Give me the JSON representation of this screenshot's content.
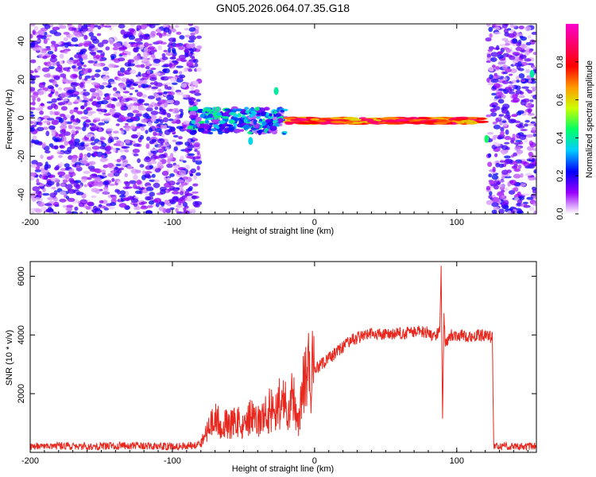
{
  "figure": {
    "title": "GN05.2026.064.07.35.G18"
  },
  "chart_data": [
    {
      "type": "heatmap",
      "title": "",
      "xlabel": "Height of straight line (km)",
      "ylabel": "Frequency (Hz)",
      "xlim": [
        -200,
        156
      ],
      "ylim": [
        -50,
        49
      ],
      "xticks": [
        -200,
        -100,
        0,
        100
      ],
      "yticks": [
        -40,
        -20,
        0,
        20,
        40
      ],
      "colorbar": {
        "label": "Normalized spectral amplitude",
        "range": [
          0,
          1
        ],
        "ticks": [
          "0.0",
          "0.2",
          "0.4",
          "0.6",
          "0.8"
        ],
        "colors": [
          "#ffffff",
          "#9900ff",
          "#0000ff",
          "#00ccff",
          "#00ff66",
          "#ccff00",
          "#ff9900",
          "#ff0000",
          "#ff0066",
          "#ff00cc"
        ]
      },
      "regions": [
        {
          "name": "noise-low",
          "x": [
            -200,
            -81
          ],
          "freq": [
            -50,
            49
          ],
          "amplitude": 0.15
        },
        {
          "name": "scattered-signal",
          "x": [
            -88,
            -20
          ],
          "freq": [
            -8,
            5
          ],
          "amplitude": 0.4
        },
        {
          "name": "signal-line",
          "x": [
            -20,
            118
          ],
          "freq": [
            -3,
            0
          ],
          "amplitude": 0.9
        },
        {
          "name": "noise-high",
          "x": [
            122,
            156
          ],
          "freq": [
            -50,
            49
          ],
          "amplitude": 0.15
        }
      ],
      "features": [
        {
          "x": -27,
          "freq": 14,
          "amplitude": 0.4
        },
        {
          "x": -45,
          "freq": -12,
          "amplitude": 0.35
        },
        {
          "x": 121,
          "freq": -11,
          "amplitude": 0.45
        },
        {
          "x": 153,
          "freq": 23,
          "amplitude": 0.4
        }
      ]
    },
    {
      "type": "line",
      "title": "",
      "xlabel": "Height of straight line (km)",
      "ylabel": "SNR (10 * v/v)",
      "xlim": [
        -200,
        156
      ],
      "ylim": [
        0,
        6500
      ],
      "xticks": [
        -200,
        -100,
        0,
        100
      ],
      "yticks": [
        2000,
        4000,
        6000
      ],
      "line_color": "#e8281e",
      "series": [
        {
          "x": [
            -200,
            -180,
            -160,
            -140,
            -120,
            -100,
            -90,
            -80,
            -75,
            -70,
            -65,
            -60,
            -55,
            -50,
            -45,
            -40,
            -35,
            -30,
            -25,
            -20,
            -15,
            -12,
            -10,
            -8,
            -5,
            0,
            5,
            10,
            15,
            20,
            25,
            30,
            35,
            40,
            50,
            60,
            70,
            80,
            85,
            88,
            89,
            90,
            91,
            92,
            95,
            100,
            110,
            120,
            125,
            126,
            130,
            140,
            150,
            156
          ],
          "values": [
            200,
            220,
            200,
            230,
            210,
            200,
            220,
            300,
            800,
            1100,
            1000,
            900,
            1100,
            800,
            1200,
            1000,
            1300,
            1500,
            1700,
            1600,
            1900,
            800,
            1800,
            2400,
            2600,
            2800,
            3000,
            3200,
            3400,
            3600,
            3800,
            3900,
            4000,
            4050,
            4000,
            4050,
            4100,
            4100,
            3900,
            4200,
            6400,
            1000,
            4800,
            3700,
            4000,
            4000,
            3950,
            4000,
            3900,
            200,
            200,
            220,
            200,
            200
          ]
        }
      ]
    }
  ]
}
